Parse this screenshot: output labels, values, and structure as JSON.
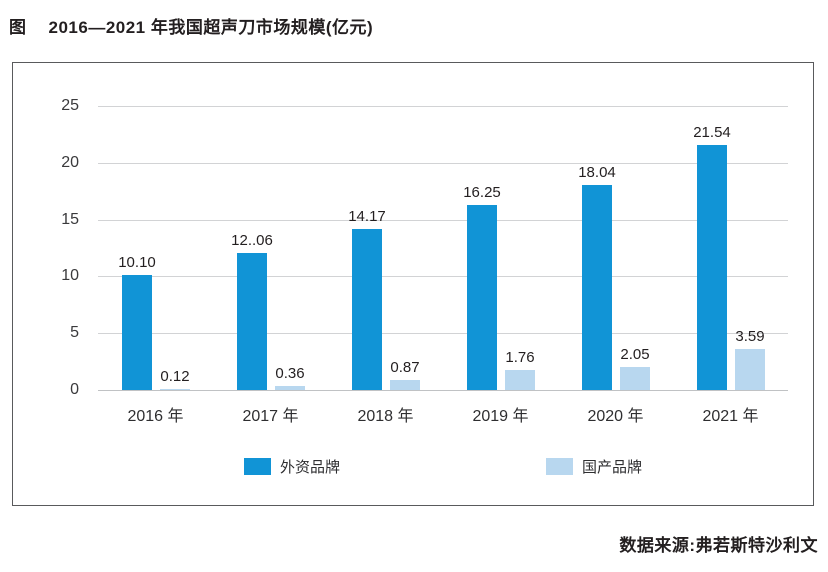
{
  "figure": {
    "label": "图",
    "title": "2016—2021 年我国超声刀市场规模(亿元)",
    "source": "数据来源:弗若斯特沙利文"
  },
  "chart_data": {
    "type": "bar",
    "title": "2016—2021 年我国超声刀市场规模(亿元)",
    "categories": [
      "2016 年",
      "2017 年",
      "2018 年",
      "2019 年",
      "2020 年",
      "2021 年"
    ],
    "series": [
      {
        "name": "外资品牌",
        "color": "#1194d6",
        "values": [
          10.1,
          12.06,
          14.17,
          16.25,
          18.04,
          21.54
        ],
        "value_labels": [
          "10.10",
          "12..06",
          "14.17",
          "16.25",
          "18.04",
          "21.54"
        ]
      },
      {
        "name": "国产品牌",
        "color": "#b8d7ef",
        "values": [
          0.12,
          0.36,
          0.87,
          1.76,
          2.05,
          3.59
        ],
        "value_labels": [
          "0.12",
          "0.36",
          "0.87",
          "1.76",
          "2.05",
          "3.59"
        ]
      }
    ],
    "xlabel": "",
    "ylabel": "",
    "ylim": [
      0,
      25
    ],
    "yticks": [
      0,
      5,
      10,
      15,
      20,
      25
    ],
    "grid": true,
    "legend_position": "bottom"
  }
}
